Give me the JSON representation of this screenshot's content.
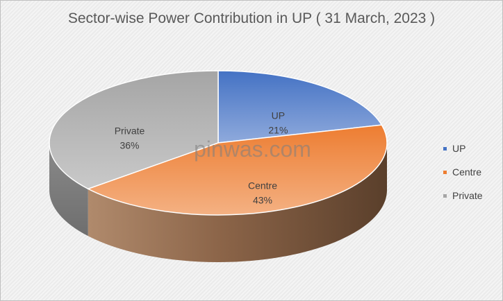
{
  "chart_data": {
    "type": "pie",
    "title": "Sector-wise Power Contribution in UP ( 31 March, 2023 )",
    "legend_position": "right",
    "slices": [
      {
        "name": "UP",
        "value": 21,
        "label": "21%",
        "color": "#4472c4",
        "light": "#8faadc"
      },
      {
        "name": "Centre",
        "value": 43,
        "label": "43%",
        "color": "#ed7d31",
        "light": "#f4b183"
      },
      {
        "name": "Private",
        "value": 36,
        "label": "36%",
        "color": "#a5a5a5",
        "light": "#c9c9c9"
      }
    ]
  },
  "watermark": "pinwas.com"
}
